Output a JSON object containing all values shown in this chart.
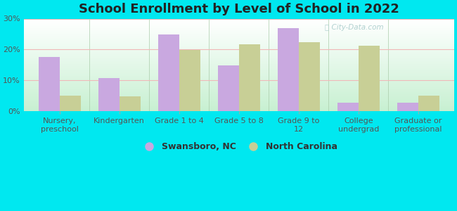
{
  "title": "School Enrollment by Level of School in 2022",
  "categories": [
    "Nursery,\npreschool",
    "Kindergarten",
    "Grade 1 to 4",
    "Grade 5 to 8",
    "Grade 9 to\n12",
    "College\nundergrad",
    "Graduate or\nprofessional"
  ],
  "swansboro": [
    17.5,
    10.8,
    24.8,
    14.8,
    27.0,
    2.8,
    2.7
  ],
  "north_carolina": [
    5.0,
    4.8,
    19.8,
    21.7,
    22.3,
    21.3,
    5.0
  ],
  "swansboro_color": "#c9a8e0",
  "nc_color": "#c8cf96",
  "background_outer": "#00e8f0",
  "gradient_top": "#ffffff",
  "gradient_bottom": "#c8f0d0",
  "grid_color": "#f0b8b8",
  "ylim": [
    0,
    30
  ],
  "yticks": [
    0,
    10,
    20,
    30
  ],
  "ytick_labels": [
    "0%",
    "10%",
    "20%",
    "30%"
  ],
  "legend_swansboro": "Swansboro, NC",
  "legend_nc": "North Carolina",
  "watermark": "City-Data.com",
  "title_fontsize": 13,
  "label_fontsize": 8
}
